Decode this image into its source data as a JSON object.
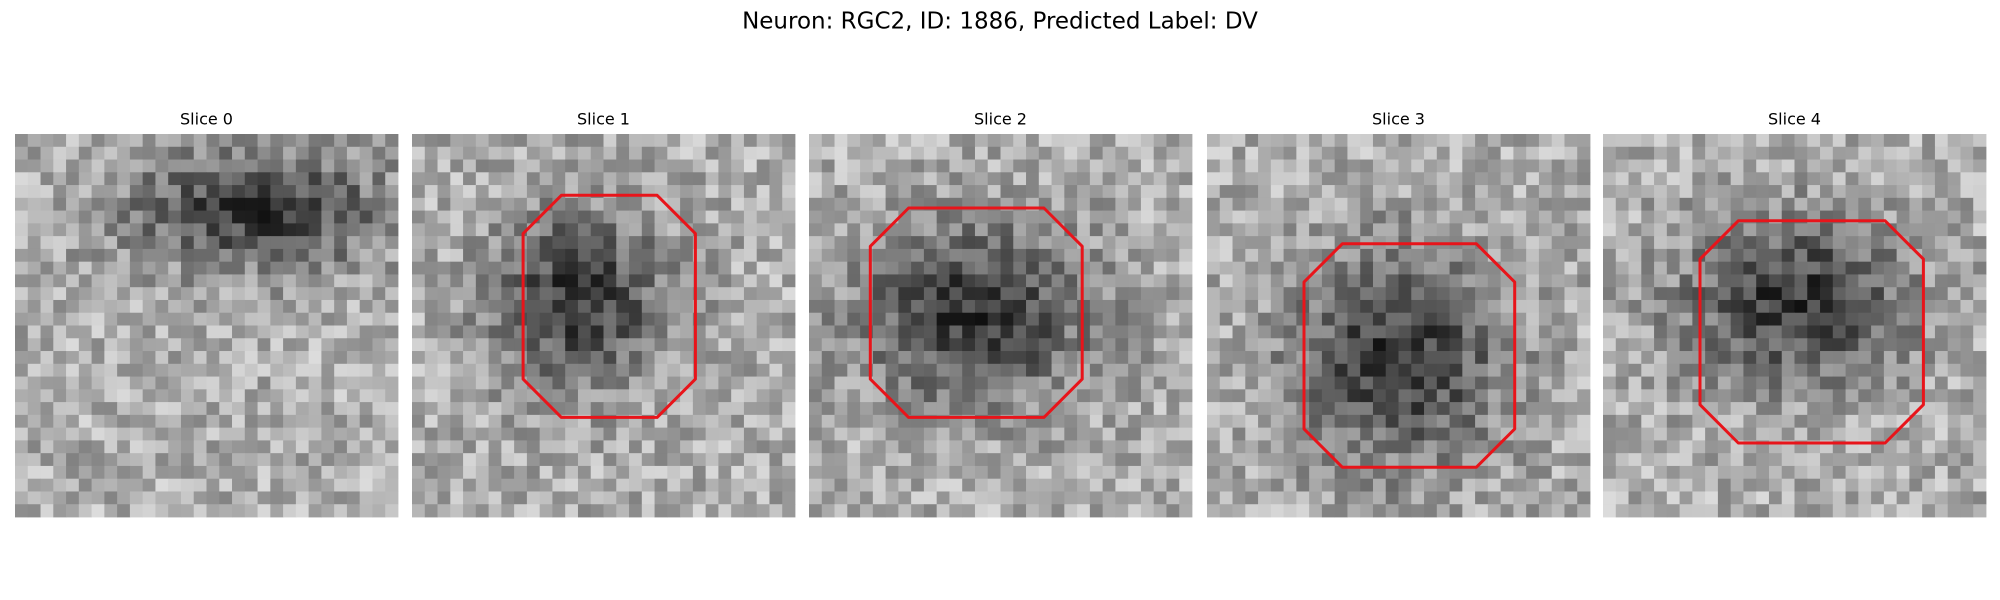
{
  "title": "Neuron: RGC2, ID: 1886, Predicted Label: DV",
  "panels": [
    {
      "title": "Slice 0"
    },
    {
      "title": "Slice 1"
    },
    {
      "title": "Slice 2"
    },
    {
      "title": "Slice 3"
    },
    {
      "title": "Slice 4"
    }
  ]
}
